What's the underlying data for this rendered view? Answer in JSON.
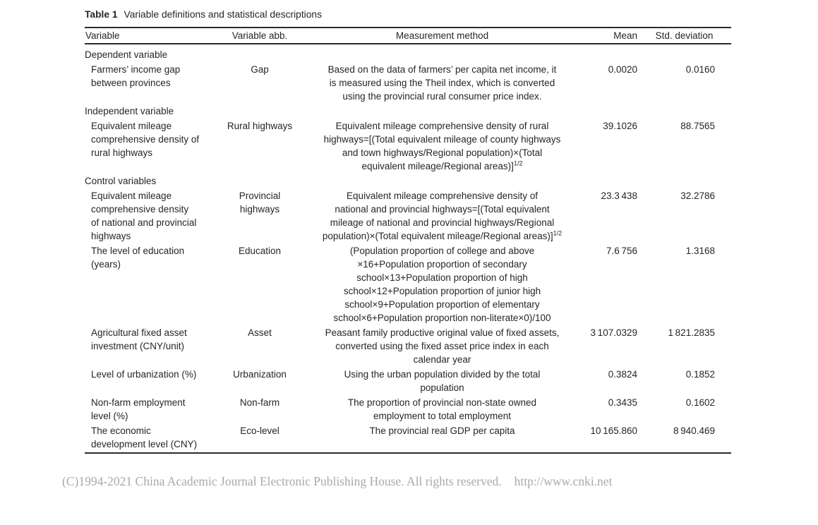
{
  "title": {
    "label": "Table 1",
    "text": "Variable definitions and statistical descriptions"
  },
  "table": {
    "headers": [
      "Variable",
      "Variable abb.",
      "Measurement method",
      "Mean",
      "Std. deviation"
    ],
    "rows": [
      {
        "type": "section",
        "label": "Dependent variable"
      },
      {
        "type": "data",
        "variable": [
          "Farmers’ income gap",
          "between provinces"
        ],
        "abb": [
          "Gap"
        ],
        "measurement": [
          "Based on the data of farmers’ per capita net income, it",
          "is measured using the Theil index, which is converted",
          "using the provincial rural consumer price index."
        ],
        "mean": "0.0020",
        "std": "0.0160"
      },
      {
        "type": "section",
        "label": "Independent variable"
      },
      {
        "type": "data",
        "variable": [
          "Equivalent mileage",
          "comprehensive density of",
          "rural highways"
        ],
        "abb": [
          "Rural highways"
        ],
        "measurement": [
          "Equivalent mileage comprehensive density of rural",
          "highways=[(Total equivalent mileage of county highways",
          "and town highways/Regional population)×(Total",
          "equivalent mileage/Regional areas)]"
        ],
        "sup": "1/2",
        "mean": "39.1026",
        "std": "88.7565"
      },
      {
        "type": "section",
        "label": "Control variables"
      },
      {
        "type": "data",
        "variable": [
          "Equivalent mileage",
          "comprehensive density",
          "of national and provincial",
          "highways"
        ],
        "abb": [
          "Provincial",
          "highways"
        ],
        "measurement": [
          "Equivalent mileage comprehensive density of",
          "national and provincial highways=[(Total equivalent",
          "mileage of national and provincial highways/Regional",
          "population)×(Total equivalent mileage/Regional areas)]"
        ],
        "sup": "1/2",
        "mean": "23.3 438",
        "std": "32.2786"
      },
      {
        "type": "data",
        "variable": [
          "The level of education",
          "(years)"
        ],
        "abb": [
          "Education"
        ],
        "measurement": [
          "(Population proportion of college and above",
          "×16+Population proportion of secondary",
          "school×13+Population proportion of high",
          "school×12+Population proportion of junior high",
          "school×9+Population proportion of elementary",
          "school×6+Population proportion non-literate×0)/100"
        ],
        "mean": "7.6 756",
        "std": "1.3168"
      },
      {
        "type": "data",
        "variable": [
          "Agricultural fixed asset",
          "investment (CNY/unit)"
        ],
        "abb": [
          "Asset"
        ],
        "measurement": [
          "Peasant family productive original value of fixed assets,",
          "converted using the fixed asset price index in each",
          "calendar year"
        ],
        "mean": "3 107.0329",
        "std": "1 821.2835"
      },
      {
        "type": "data",
        "variable": [
          "Level of urbanization (%)"
        ],
        "abb": [
          "Urbanization"
        ],
        "measurement": [
          "Using the urban population divided by the total",
          "population"
        ],
        "mean": "0.3824",
        "std": "0.1852"
      },
      {
        "type": "data",
        "variable": [
          "Non-farm employment",
          "level (%)"
        ],
        "abb": [
          "Non-farm"
        ],
        "measurement": [
          "The proportion of provincial non-state owned",
          "employment to total employment"
        ],
        "mean": "0.3435",
        "std": "0.1602"
      },
      {
        "type": "data",
        "variable": [
          "The economic",
          "development level (CNY)"
        ],
        "abb": [
          "Eco-level"
        ],
        "measurement": [
          "The provincial real GDP per capita"
        ],
        "mean": "10 165.860",
        "std": "8 940.469"
      }
    ]
  },
  "footer": {
    "copyright": "(C)1994-2021 China Academic Journal Electronic Publishing House. All rights reserved.",
    "url": "http://www.cnki.net"
  }
}
